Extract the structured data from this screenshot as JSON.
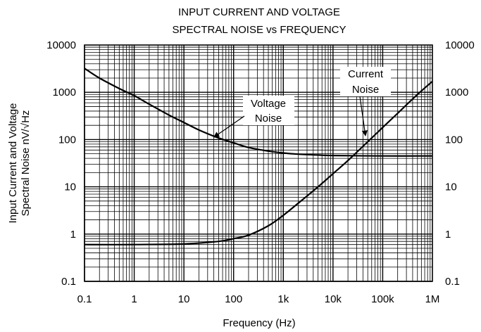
{
  "chart_data": {
    "type": "line",
    "title": [
      "INPUT CURRENT AND VOLTAGE",
      "SPECTRAL NOISE vs FREQUENCY"
    ],
    "xlabel": "Frequency (Hz)",
    "ylabel": [
      "Input Current and Voltage",
      "Spectral Noise nV/√Hz"
    ],
    "x_scale": "log",
    "y_scale": "log",
    "xlim": [
      0.1,
      1000000
    ],
    "ylim": [
      0.1,
      10000
    ],
    "grid": true,
    "x_ticks": [
      {
        "value": 0.1,
        "label": "0.1"
      },
      {
        "value": 1,
        "label": "1"
      },
      {
        "value": 10,
        "label": "10"
      },
      {
        "value": 100,
        "label": "100"
      },
      {
        "value": 1000,
        "label": "1k"
      },
      {
        "value": 10000,
        "label": "10k"
      },
      {
        "value": 100000,
        "label": "100k"
      },
      {
        "value": 1000000,
        "label": "1M"
      }
    ],
    "y_ticks_left": [
      {
        "value": 0.1,
        "label": "0.1"
      },
      {
        "value": 1,
        "label": "1"
      },
      {
        "value": 10,
        "label": "10"
      },
      {
        "value": 100,
        "label": "100"
      },
      {
        "value": 1000,
        "label": "1000"
      },
      {
        "value": 10000,
        "label": "10000"
      }
    ],
    "y_ticks_right": [
      {
        "value": 0.1,
        "label": "0.1"
      },
      {
        "value": 1,
        "label": "1"
      },
      {
        "value": 10,
        "label": "10"
      },
      {
        "value": 100,
        "label": "100"
      },
      {
        "value": 1000,
        "label": "1000"
      },
      {
        "value": 10000,
        "label": "10000"
      }
    ],
    "series": [
      {
        "name": "Voltage Noise",
        "x": [
          0.1,
          0.2,
          0.5,
          1,
          2,
          5,
          10,
          20,
          50,
          100,
          200,
          500,
          1000,
          2000,
          5000,
          10000,
          100000,
          1000000
        ],
        "y": [
          3200,
          2000,
          1200,
          850,
          560,
          330,
          230,
          160,
          108,
          85,
          68,
          57,
          52,
          49,
          47,
          46,
          45,
          45
        ]
      },
      {
        "name": "Current Noise",
        "x": [
          0.1,
          1,
          10,
          50,
          100,
          200,
          500,
          1000,
          2000,
          5000,
          10000,
          20000,
          50000,
          100000,
          200000,
          500000,
          1000000
        ],
        "y": [
          0.6,
          0.6,
          0.62,
          0.7,
          0.8,
          0.95,
          1.5,
          2.5,
          4.5,
          10,
          19,
          36,
          90,
          180,
          360,
          900,
          1700
        ]
      }
    ],
    "annotations": [
      {
        "series": "Voltage Noise",
        "lines": [
          "Voltage",
          "Noise"
        ],
        "arrow_to": {
          "x": 40,
          "y": 112
        }
      },
      {
        "series": "Current Noise",
        "lines": [
          "Current",
          "Noise"
        ],
        "arrow_to": {
          "x": 45000,
          "y": 120
        }
      }
    ]
  }
}
